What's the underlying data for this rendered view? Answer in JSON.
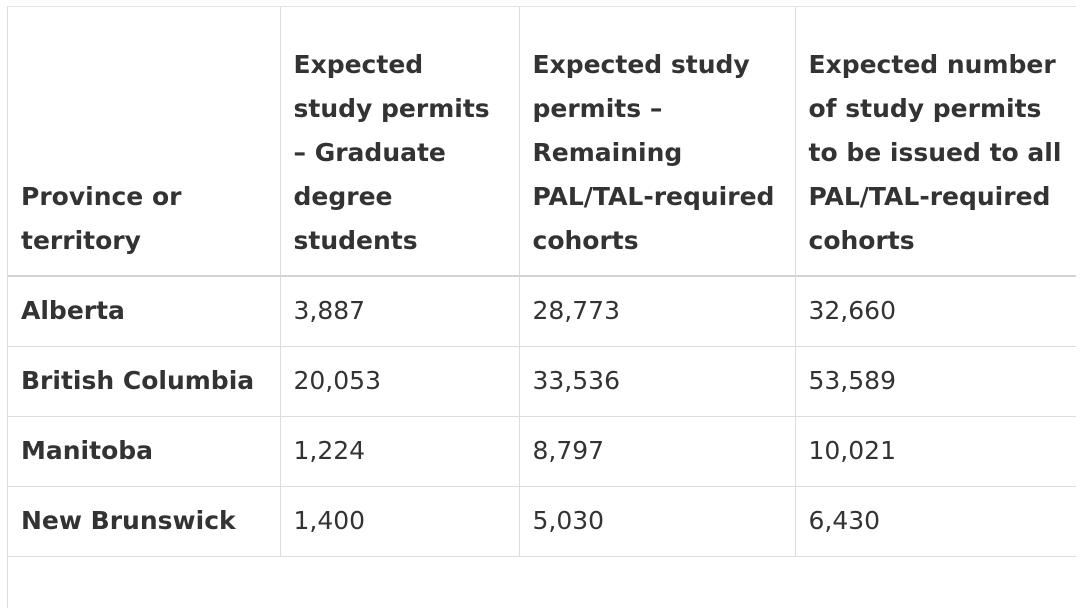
{
  "table": {
    "header": [
      "Province or territory",
      "Expected study permits – Graduate degree students",
      "Expected study permits – Remaining PAL/TAL-required cohorts",
      "Expected number of study permits to be issued to all PAL/TAL-required cohorts"
    ],
    "rows": [
      [
        "Alberta",
        "3,887",
        "28,773",
        "32,660"
      ],
      [
        "British Columbia",
        "20,053",
        "33,536",
        "53,589"
      ],
      [
        "Manitoba",
        "1,224",
        "8,797",
        "10,021"
      ],
      [
        "New Brunswick",
        "1,400",
        "5,030",
        "6,430"
      ]
    ]
  }
}
